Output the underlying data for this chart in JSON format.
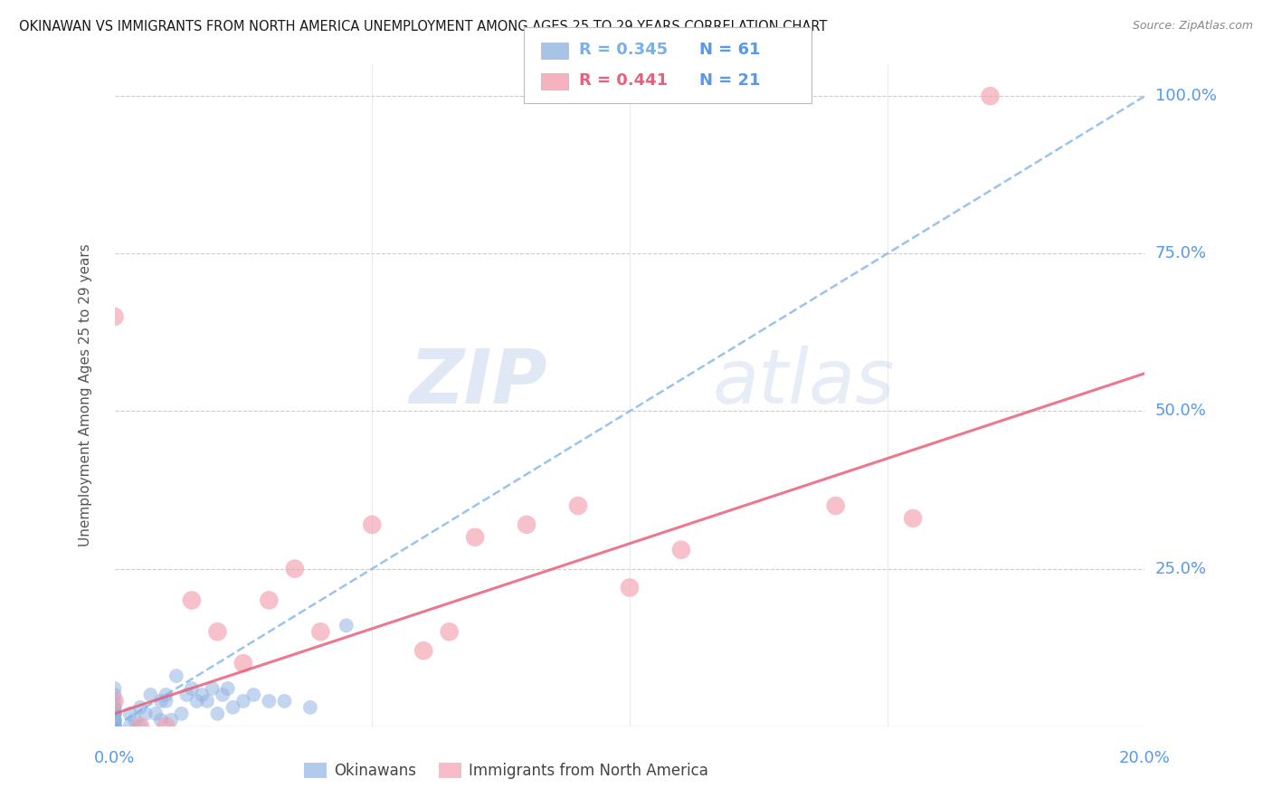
{
  "title": "OKINAWAN VS IMMIGRANTS FROM NORTH AMERICA UNEMPLOYMENT AMONG AGES 25 TO 29 YEARS CORRELATION CHART",
  "source": "Source: ZipAtlas.com",
  "ylabel": "Unemployment Among Ages 25 to 29 years",
  "xlim": [
    0.0,
    0.2
  ],
  "ylim": [
    0.0,
    1.05
  ],
  "legend_label1": "Okinawans",
  "legend_label2": "Immigrants from North America",
  "R1": 0.345,
  "N1": 61,
  "R2": 0.441,
  "N2": 21,
  "color_blue": "#92b4e3",
  "color_pink": "#f4a0b0",
  "color_blue_line": "#7ab0e8",
  "color_pink_line": "#e8607a",
  "color_axis_label": "#5599ee",
  "watermark_zip": "ZIP",
  "watermark_atlas": "atlas",
  "background_color": "#ffffff",
  "blue_line_slope": 5.0,
  "blue_line_intercept": 0.0,
  "pink_line_slope": 2.7,
  "pink_line_intercept": 0.02,
  "okinawan_x": [
    0.0,
    0.0,
    0.0,
    0.0,
    0.0,
    0.0,
    0.0,
    0.0,
    0.0,
    0.0,
    0.0,
    0.0,
    0.0,
    0.0,
    0.0,
    0.0,
    0.0,
    0.0,
    0.0,
    0.0,
    0.0,
    0.0,
    0.0,
    0.0,
    0.0,
    0.0,
    0.0,
    0.0,
    0.0,
    0.0,
    0.003,
    0.003,
    0.004,
    0.005,
    0.005,
    0.006,
    0.007,
    0.008,
    0.009,
    0.009,
    0.01,
    0.01,
    0.011,
    0.012,
    0.013,
    0.014,
    0.015,
    0.016,
    0.017,
    0.018,
    0.019,
    0.02,
    0.021,
    0.022,
    0.023,
    0.025,
    0.027,
    0.03,
    0.033,
    0.038,
    0.045
  ],
  "okinawan_y": [
    0.0,
    0.0,
    0.0,
    0.0,
    0.0,
    0.0,
    0.0,
    0.0,
    0.0,
    0.0,
    0.0,
    0.0,
    0.0,
    0.0,
    0.0,
    0.01,
    0.01,
    0.01,
    0.01,
    0.01,
    0.02,
    0.02,
    0.02,
    0.02,
    0.02,
    0.03,
    0.03,
    0.04,
    0.05,
    0.06,
    0.0,
    0.02,
    0.01,
    0.0,
    0.03,
    0.02,
    0.05,
    0.02,
    0.01,
    0.04,
    0.04,
    0.05,
    0.01,
    0.08,
    0.02,
    0.05,
    0.06,
    0.04,
    0.05,
    0.04,
    0.06,
    0.02,
    0.05,
    0.06,
    0.03,
    0.04,
    0.05,
    0.04,
    0.04,
    0.03,
    0.16
  ],
  "immigrant_x": [
    0.0,
    0.0,
    0.005,
    0.01,
    0.015,
    0.02,
    0.025,
    0.03,
    0.035,
    0.04,
    0.05,
    0.06,
    0.065,
    0.07,
    0.08,
    0.09,
    0.1,
    0.11,
    0.14,
    0.155,
    0.17
  ],
  "immigrant_y": [
    0.04,
    0.65,
    0.0,
    0.0,
    0.2,
    0.15,
    0.1,
    0.2,
    0.25,
    0.15,
    0.32,
    0.12,
    0.15,
    0.3,
    0.32,
    0.35,
    0.22,
    0.28,
    0.35,
    0.33,
    1.0
  ]
}
